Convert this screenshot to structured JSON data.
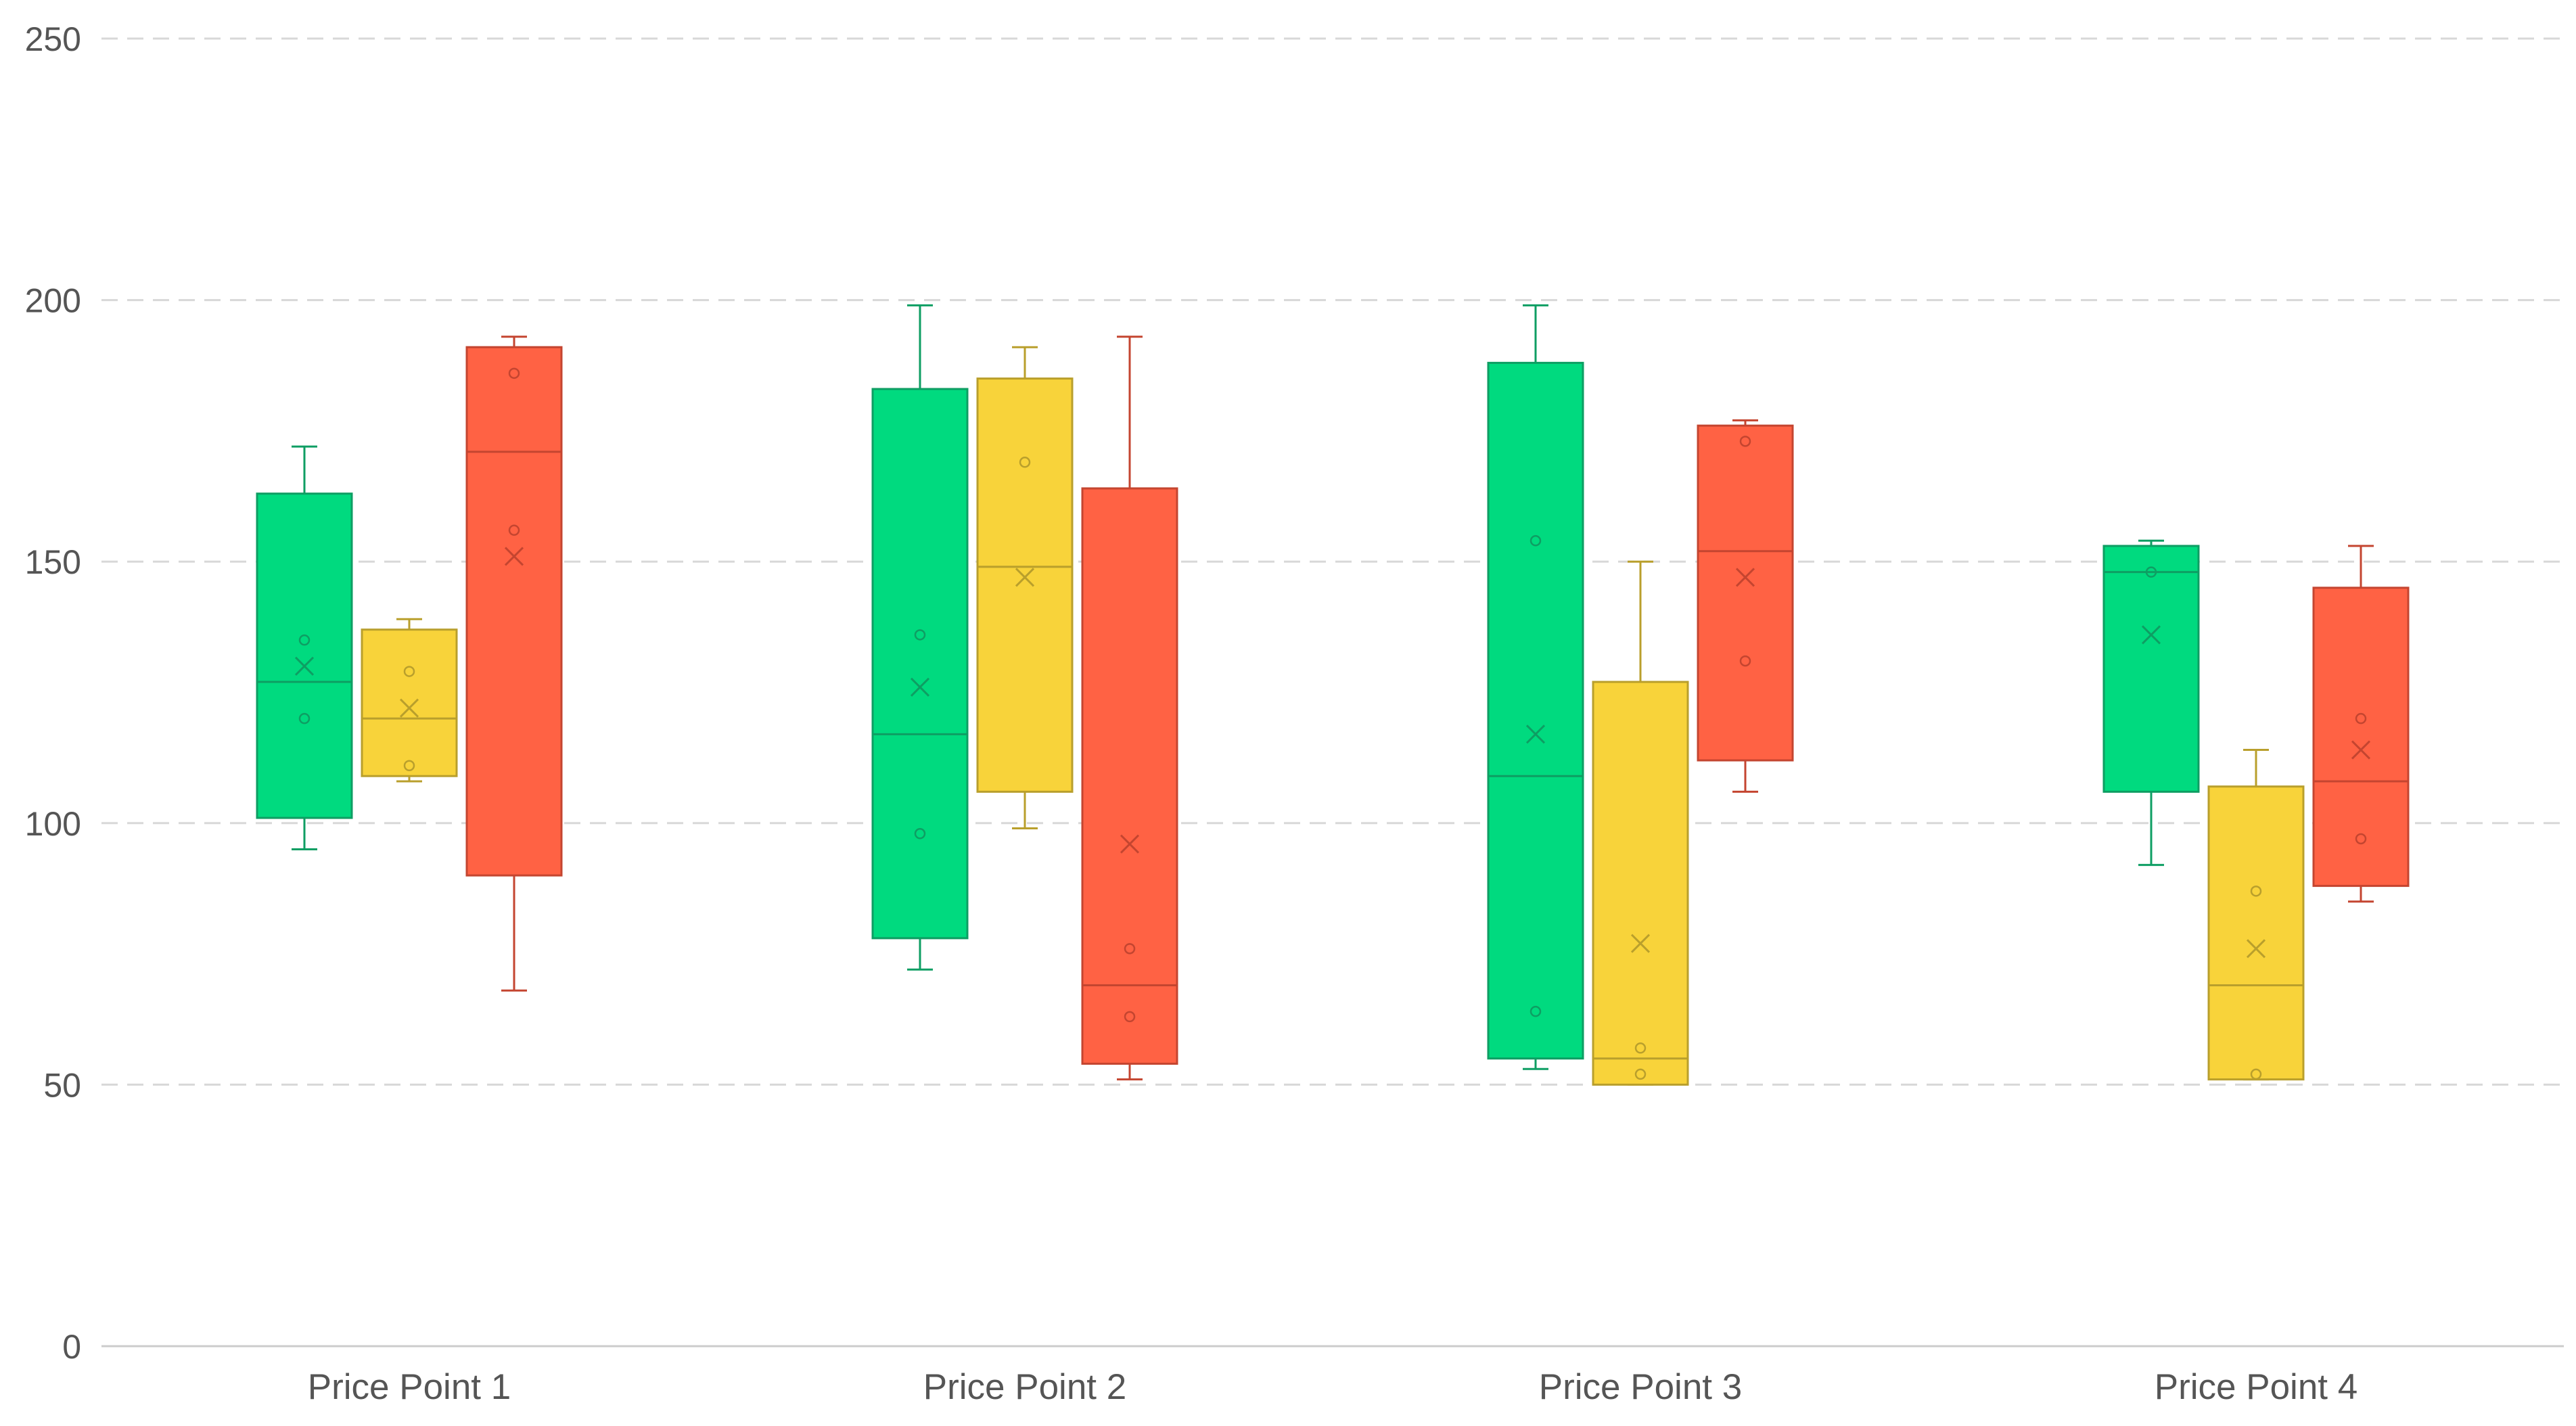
{
  "chart_data": {
    "type": "box",
    "categories": [
      "Price Point 1",
      "Price Point 2",
      "Price Point 3",
      "Price Point 4"
    ],
    "ylim": [
      0,
      250
    ],
    "yticks": [
      0,
      50,
      100,
      150,
      200,
      250
    ],
    "grid": true,
    "colors": {
      "series": [
        {
          "fill": "#00DA7F",
          "stroke": "#0E9E63"
        },
        {
          "fill": "#F8D33A",
          "stroke": "#B99F2C"
        },
        {
          "fill": "#FF6244",
          "stroke": "#C44530"
        }
      ],
      "grid": "#D8D8D8",
      "axis": "#CCCCCC"
    },
    "series": [
      {
        "boxes": [
          {
            "min": 95,
            "q1": 101,
            "median": 127,
            "q3": 163,
            "max": 172,
            "mean": 130,
            "points": [
              120,
              135
            ]
          },
          {
            "min": 72,
            "q1": 78,
            "median": 117,
            "q3": 183,
            "max": 199,
            "mean": 126,
            "points": [
              98,
              136
            ]
          },
          {
            "min": 53,
            "q1": 55,
            "median": 109,
            "q3": 188,
            "max": 199,
            "mean": 117,
            "points": [
              64,
              154
            ]
          },
          {
            "min": 92,
            "q1": 106,
            "median": 148,
            "q3": 153,
            "max": 154,
            "mean": 136,
            "points": [
              148
            ]
          }
        ]
      },
      {
        "boxes": [
          {
            "min": 108,
            "q1": 109,
            "median": 120,
            "q3": 137,
            "max": 139,
            "mean": 122,
            "points": [
              111,
              129
            ]
          },
          {
            "min": 99,
            "q1": 106,
            "median": 149,
            "q3": 185,
            "max": 191,
            "mean": 147,
            "points": [
              169
            ]
          },
          {
            "min": 50,
            "q1": 50,
            "median": 55,
            "q3": 127,
            "max": 150,
            "mean": 77,
            "points": [
              52,
              57
            ]
          },
          {
            "min": 51,
            "q1": 51,
            "median": 69,
            "q3": 107,
            "max": 114,
            "mean": 76,
            "points": [
              52,
              87
            ]
          }
        ]
      },
      {
        "boxes": [
          {
            "min": 68,
            "q1": 90,
            "median": 171,
            "q3": 191,
            "max": 193,
            "mean": 151,
            "points": [
              156,
              186
            ]
          },
          {
            "min": 51,
            "q1": 54,
            "median": 69,
            "q3": 164,
            "max": 193,
            "mean": 96,
            "points": [
              63,
              76
            ]
          },
          {
            "min": 106,
            "q1": 112,
            "median": 152,
            "q3": 176,
            "max": 177,
            "mean": 147,
            "points": [
              131,
              173
            ]
          },
          {
            "min": 85,
            "q1": 88,
            "median": 108,
            "q3": 145,
            "max": 153,
            "mean": 114,
            "points": [
              97,
              120
            ]
          }
        ]
      }
    ]
  }
}
